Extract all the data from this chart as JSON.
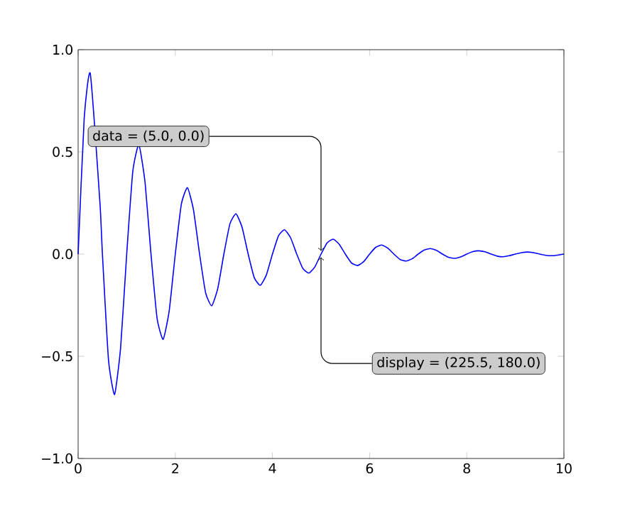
{
  "chart_data": {
    "type": "line",
    "color": "#0000ff",
    "x": [
      0,
      0.125,
      0.25,
      0.45,
      0.5,
      0.625,
      0.75,
      0.875,
      1,
      1.125,
      1.25,
      1.375,
      1.5,
      1.625,
      1.75,
      1.875,
      2,
      2.125,
      2.25,
      2.375,
      2.5,
      2.625,
      2.75,
      2.875,
      3,
      3.125,
      3.25,
      3.375,
      3.5,
      3.625,
      3.75,
      3.875,
      4,
      4.125,
      4.25,
      4.375,
      4.5,
      4.625,
      4.75,
      4.875,
      5,
      5.125,
      5.25,
      5.375,
      5.5,
      5.625,
      5.75,
      5.875,
      6,
      6.125,
      6.25,
      6.375,
      6.5,
      6.625,
      6.75,
      6.875,
      7,
      7.125,
      7.25,
      7.375,
      7.5,
      7.625,
      7.75,
      7.875,
      8,
      8.125,
      8.25,
      8.375,
      8.5,
      8.625,
      8.75,
      8.875,
      9,
      9.125,
      9.25,
      9.375,
      9.5,
      9.625,
      9.75,
      9.875,
      10
    ],
    "values": [
      0,
      0.664,
      0.883,
      0.247,
      0,
      -0.517,
      -0.687,
      -0.457,
      0,
      0.403,
      0.535,
      0.356,
      0,
      -0.314,
      -0.417,
      -0.277,
      0,
      0.244,
      0.325,
      0.216,
      0,
      -0.19,
      -0.253,
      -0.168,
      0,
      0.148,
      0.197,
      0.131,
      0,
      -0.115,
      -0.153,
      -0.102,
      0,
      0.09,
      0.119,
      0.079,
      0,
      -0.07,
      -0.093,
      -0.062,
      0,
      0.055,
      0.073,
      0.048,
      0,
      -0.043,
      -0.056,
      -0.038,
      0,
      0.033,
      0.044,
      0.029,
      0,
      -0.026,
      -0.034,
      -0.023,
      0,
      0.02,
      0.027,
      0.018,
      0,
      -0.016,
      -0.021,
      -0.014,
      0,
      0.012,
      0.016,
      0.011,
      0,
      -0.01,
      -0.013,
      -0.008,
      0,
      0.007,
      0.01,
      0.007,
      0,
      -0.006,
      -0.008,
      -0.005,
      0
    ],
    "xlim": [
      0,
      10
    ],
    "ylim": [
      -1,
      1
    ],
    "xticks": [
      0,
      2,
      4,
      6,
      8,
      10
    ],
    "yticks": [
      {
        "value": -1,
        "label": "−1.0"
      },
      {
        "value": -0.5,
        "label": "−0.5"
      },
      {
        "value": 0,
        "label": "0.0"
      },
      {
        "value": 0.5,
        "label": "0.5"
      },
      {
        "value": 1,
        "label": "1.0"
      }
    ],
    "annotations": [
      {
        "text": "data = (5.0, 0.0)",
        "x": 5,
        "y": 0
      },
      {
        "text": "display = (225.5, 180.0)",
        "x": 5,
        "y": 0
      }
    ]
  }
}
